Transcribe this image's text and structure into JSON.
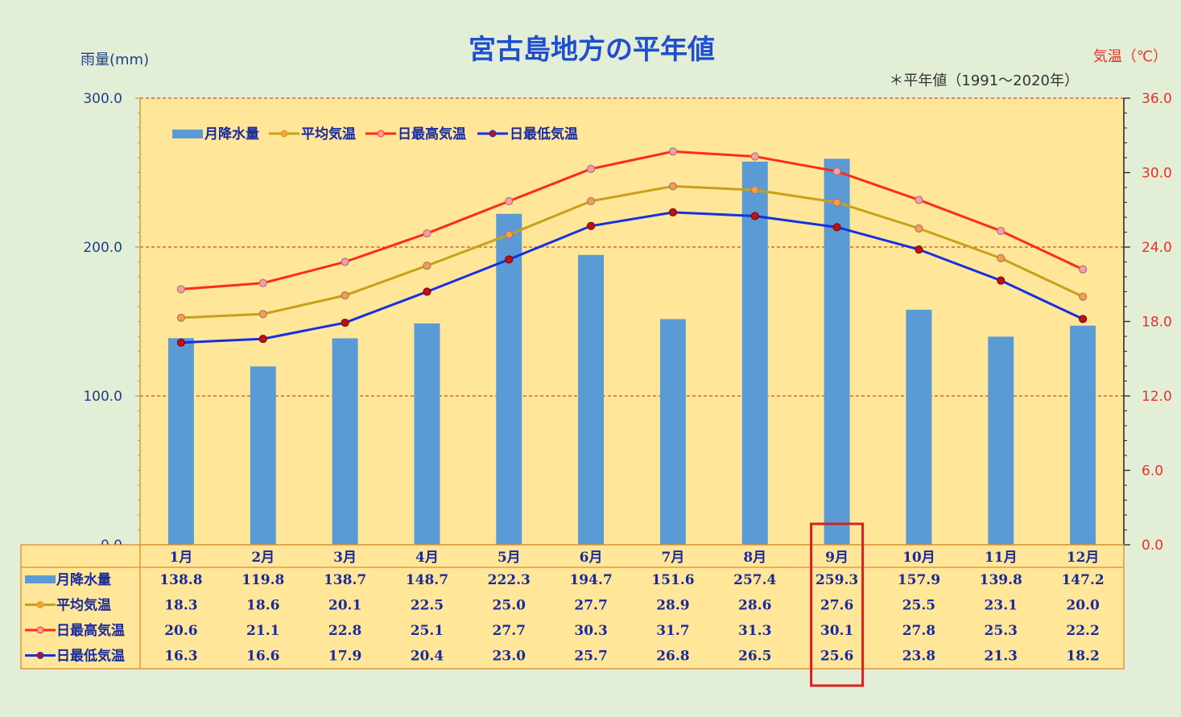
{
  "chart_data": {
    "type": "bar",
    "title": "宮古島地方の平年値",
    "subtitle": "＊平年値（1991～2020年）",
    "ylabel_left": "雨量(mm)",
    "ylabel_right": "気温（℃）",
    "ylim_left": [
      0,
      300
    ],
    "ylim_right": [
      0,
      36
    ],
    "left_ticks": [
      "0.0",
      "100.0",
      "200.0",
      "300.0"
    ],
    "right_ticks": [
      "0.0",
      "6.0",
      "12.0",
      "18.0",
      "24.0",
      "30.0",
      "36.0"
    ],
    "categories": [
      "1月",
      "2月",
      "3月",
      "4月",
      "5月",
      "6月",
      "7月",
      "8月",
      "9月",
      "10月",
      "11月",
      "12月"
    ],
    "legend_position": "top-left",
    "highlight_category": "9月",
    "series": [
      {
        "name": "月降水量",
        "type": "bar",
        "axis": "left",
        "color": "#5b9bd5",
        "values": [
          138.8,
          119.8,
          138.7,
          148.7,
          222.3,
          194.7,
          151.6,
          257.4,
          259.3,
          157.9,
          139.8,
          147.2
        ]
      },
      {
        "name": "平均気温",
        "type": "line",
        "axis": "right",
        "color": "#c9a018",
        "values": [
          18.3,
          18.6,
          20.1,
          22.5,
          25.0,
          27.7,
          28.9,
          28.6,
          27.6,
          25.5,
          23.1,
          20.0
        ]
      },
      {
        "name": "日最高気温",
        "type": "line",
        "axis": "right",
        "color": "#ff2a1a",
        "values": [
          20.6,
          21.1,
          22.8,
          25.1,
          27.7,
          30.3,
          31.7,
          31.3,
          30.1,
          27.8,
          25.3,
          22.2
        ]
      },
      {
        "name": "日最低気温",
        "type": "line",
        "axis": "right",
        "color": "#1530e0",
        "values": [
          16.3,
          16.6,
          17.9,
          20.4,
          23.0,
          25.7,
          26.8,
          26.5,
          25.6,
          23.8,
          21.3,
          18.2
        ]
      }
    ],
    "table_rows": [
      {
        "label": "月降水量",
        "values": [
          "138.8",
          "119.8",
          "138.7",
          "148.7",
          "222.3",
          "194.7",
          "151.6",
          "257.4",
          "259.3",
          "157.9",
          "139.8",
          "147.2"
        ]
      },
      {
        "label": "平均気温",
        "values": [
          "18.3",
          "18.6",
          "20.1",
          "22.5",
          "25.0",
          "27.7",
          "28.9",
          "28.6",
          "27.6",
          "25.5",
          "23.1",
          "20.0"
        ]
      },
      {
        "label": "日最高気温",
        "values": [
          "20.6",
          "21.1",
          "22.8",
          "25.1",
          "27.7",
          "30.3",
          "31.7",
          "31.3",
          "30.1",
          "27.8",
          "25.3",
          "22.2"
        ]
      },
      {
        "label": "日最低気温",
        "values": [
          "16.3",
          "16.6",
          "17.9",
          "20.4",
          "23.0",
          "25.7",
          "26.8",
          "26.5",
          "25.6",
          "23.8",
          "21.3",
          "18.2"
        ]
      }
    ],
    "colors": {
      "background": "#e3eed6",
      "plot_area": "#ffe699",
      "grid": "#d34a2a",
      "left_axis_text": "#1f3f86",
      "right_axis_text": "#e8302a",
      "highlight_box": "#d92020",
      "table_text": "#1a2a9a"
    }
  }
}
